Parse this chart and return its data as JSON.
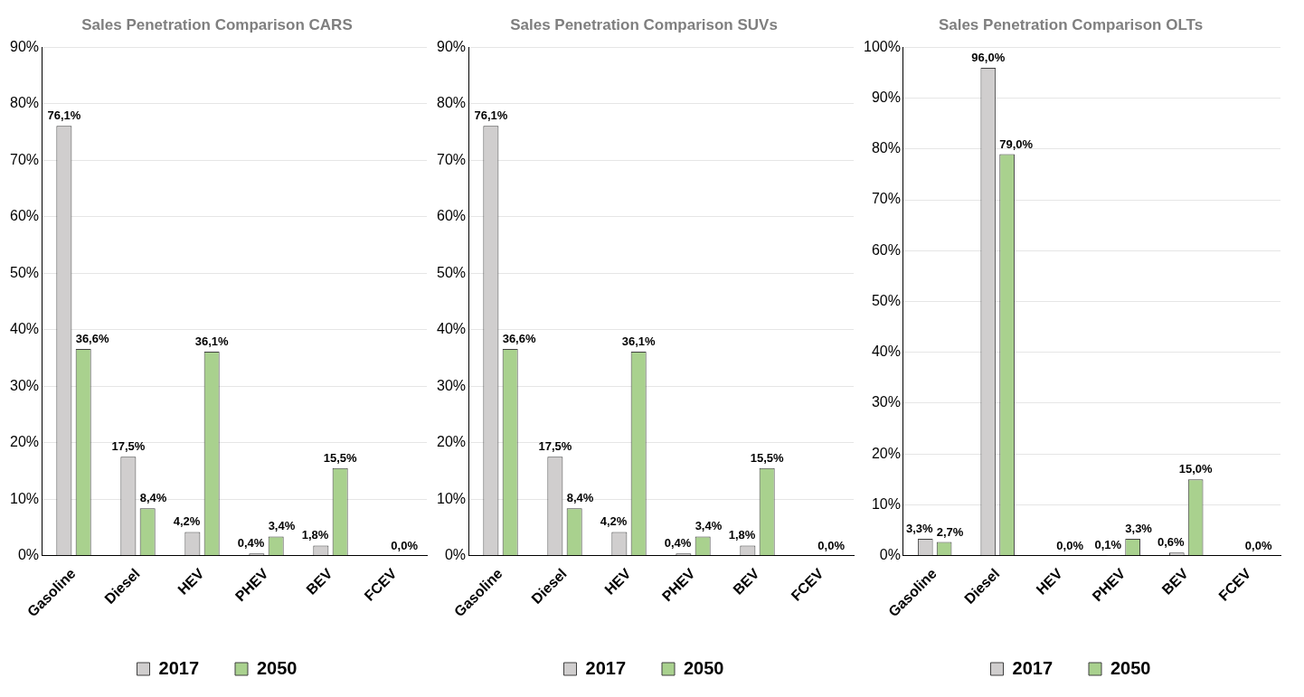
{
  "chart_data": [
    {
      "type": "bar",
      "title": "Sales Penetration Comparison CARS",
      "categories": [
        "Gasoline",
        "Diesel",
        "HEV",
        "PHEV",
        "BEV",
        "FCEV"
      ],
      "series": [
        {
          "name": "2017",
          "color": "#d0cece",
          "values": [
            76.1,
            17.5,
            4.2,
            0.4,
            1.8,
            0
          ],
          "value_labels": [
            "76,1%",
            "17,5%",
            "4,2%",
            "0,4%",
            "1,8%",
            null
          ]
        },
        {
          "name": "2050",
          "color": "#a9d18e",
          "values": [
            36.6,
            8.4,
            36.1,
            3.4,
            15.5,
            0
          ],
          "value_labels": [
            "36,6%",
            "8,4%",
            "36,1%",
            "3,4%",
            "15,5%",
            "0,0%"
          ]
        }
      ],
      "ylim": [
        0,
        90
      ],
      "yticks": [
        {
          "value": 0,
          "label": "0%"
        },
        {
          "value": 10,
          "label": "10%"
        },
        {
          "value": 20,
          "label": "20%"
        },
        {
          "value": 30,
          "label": "30%"
        },
        {
          "value": 40,
          "label": "40%"
        },
        {
          "value": 50,
          "label": "50%"
        },
        {
          "value": 60,
          "label": "60%"
        },
        {
          "value": 70,
          "label": "70%"
        },
        {
          "value": 80,
          "label": "80%"
        },
        {
          "value": 90,
          "label": "90%"
        }
      ],
      "grid": "y",
      "legend": "bottom"
    },
    {
      "type": "bar",
      "title": "Sales Penetration Comparison SUVs",
      "categories": [
        "Gasoline",
        "Diesel",
        "HEV",
        "PHEV",
        "BEV",
        "FCEV"
      ],
      "series": [
        {
          "name": "2017",
          "color": "#d0cece",
          "values": [
            76.1,
            17.5,
            4.2,
            0.4,
            1.8,
            0
          ],
          "value_labels": [
            "76,1%",
            "17,5%",
            "4,2%",
            "0,4%",
            "1,8%",
            null
          ]
        },
        {
          "name": "2050",
          "color": "#a9d18e",
          "values": [
            36.6,
            8.4,
            36.1,
            3.4,
            15.5,
            0
          ],
          "value_labels": [
            "36,6%",
            "8,4%",
            "36,1%",
            "3,4%",
            "15,5%",
            "0,0%"
          ]
        }
      ],
      "ylim": [
        0,
        90
      ],
      "yticks": [
        {
          "value": 0,
          "label": "0%"
        },
        {
          "value": 10,
          "label": "10%"
        },
        {
          "value": 20,
          "label": "20%"
        },
        {
          "value": 30,
          "label": "30%"
        },
        {
          "value": 40,
          "label": "40%"
        },
        {
          "value": 50,
          "label": "50%"
        },
        {
          "value": 60,
          "label": "60%"
        },
        {
          "value": 70,
          "label": "70%"
        },
        {
          "value": 80,
          "label": "80%"
        },
        {
          "value": 90,
          "label": "90%"
        }
      ],
      "grid": "y",
      "legend": "bottom"
    },
    {
      "type": "bar",
      "title": "Sales Penetration Comparison OLTs",
      "categories": [
        "Gasoline",
        "Diesel",
        "HEV",
        "PHEV",
        "BEV",
        "FCEV"
      ],
      "series": [
        {
          "name": "2017",
          "color": "#d0cece",
          "values": [
            3.3,
            96.0,
            0,
            0.1,
            0.6,
            0
          ],
          "value_labels": [
            "3,3%",
            "96,0%",
            null,
            "0,1%",
            "0,6%",
            null
          ]
        },
        {
          "name": "2050",
          "color": "#a9d18e",
          "values": [
            2.7,
            79.0,
            0,
            3.3,
            15.0,
            0
          ],
          "value_labels": [
            "2,7%",
            "79,0%",
            "0,0%",
            "3,3%",
            "15,0%",
            "0,0%"
          ]
        }
      ],
      "ylim": [
        0,
        100
      ],
      "yticks": [
        {
          "value": 0,
          "label": "0%"
        },
        {
          "value": 10,
          "label": "10%"
        },
        {
          "value": 20,
          "label": "20%"
        },
        {
          "value": 30,
          "label": "30%"
        },
        {
          "value": 40,
          "label": "40%"
        },
        {
          "value": 50,
          "label": "50%"
        },
        {
          "value": 60,
          "label": "60%"
        },
        {
          "value": 70,
          "label": "70%"
        },
        {
          "value": 80,
          "label": "80%"
        },
        {
          "value": 90,
          "label": "90%"
        },
        {
          "value": 100,
          "label": "100%"
        }
      ],
      "grid": "y",
      "legend": "bottom"
    }
  ]
}
